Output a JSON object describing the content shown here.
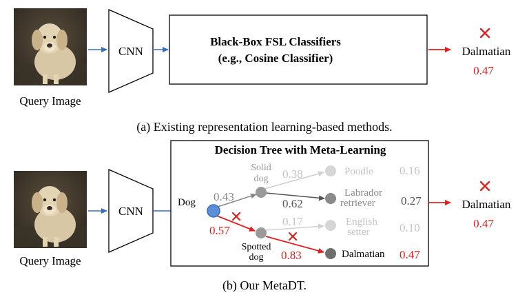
{
  "panel_a": {
    "query_label": "Query Image",
    "cnn_label": "CNN",
    "classifier_line1": "Black-Box FSL Classifiers",
    "classifier_line2": "(e.g., Cosine Classifier)",
    "prediction": "Dalmatian",
    "score": "0.47",
    "caption": "(a) Existing representation learning-based methods."
  },
  "panel_b": {
    "query_label": "Query Image",
    "cnn_label": "CNN",
    "tree_title": "Decision Tree with Meta-Learning",
    "root_label": "Dog",
    "solid_line1": "Solid",
    "solid_line2": "dog",
    "spotted_line1": "Spotted",
    "spotted_line2": "dog",
    "w_root_solid": "0.43",
    "w_root_spotted": "0.57",
    "w_solid_poodle": "0.38",
    "w_solid_labrador": "0.62",
    "w_spotted_english": "0.17",
    "w_spotted_dalmatian": "0.83",
    "leaf_poodle": "Poodle",
    "leaf_labrador_1": "Labrador",
    "leaf_labrador_2": "retriever",
    "leaf_english_1": "English",
    "leaf_english_2": "setter",
    "leaf_dalmatian": "Dalmatian",
    "p_poodle": "0.16",
    "p_labrador": "0.27",
    "p_english": "0.10",
    "p_dalmatian": "0.47",
    "prediction": "Dalmatian",
    "score": "0.47",
    "caption": "(b) Our MetaDT."
  },
  "colors": {
    "blue": "#3a6cc0",
    "red": "#e02020",
    "gray_node": "#9a9a9a",
    "light_node": "#d6d6d6",
    "dark_node": "#6f6f6f",
    "gray_text": "#8a8a8a",
    "light_text": "#c4c4c4",
    "dark_text": "#555555"
  }
}
